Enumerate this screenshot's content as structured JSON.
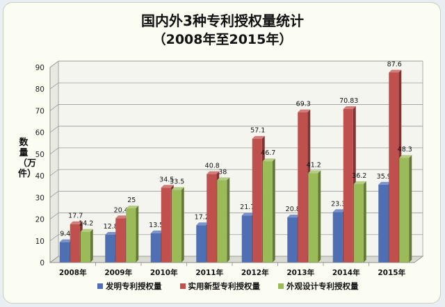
{
  "chart_data": {
    "type": "bar",
    "title": "国内外3种专利授权量统计",
    "subtitle": "（2008年至2015年）",
    "ylabel": "数量（万件）",
    "xlabel": "",
    "ylim": [
      0,
      90
    ],
    "yticks": [
      0,
      10,
      20,
      30,
      40,
      50,
      60,
      70,
      80,
      90
    ],
    "grid": true,
    "legend_position": "bottom",
    "categories": [
      "2008年",
      "2009年",
      "2010年",
      "2011年",
      "2012年",
      "2013年",
      "2014年",
      "2015年"
    ],
    "series": [
      {
        "name": "发明专利授权量",
        "color": "#4f6fb5",
        "values": [
          9.4,
          12.8,
          13.5,
          17.2,
          21.7,
          20.8,
          23.3,
          35.9
        ],
        "labels": [
          "9.4",
          "12.8",
          "13.5",
          "17.2",
          "21.7",
          "20.8",
          "23.3",
          "35.9"
        ]
      },
      {
        "name": "实用新型专利授权量",
        "color": "#c0504d",
        "values": [
          17.7,
          20.4,
          34.5,
          40.8,
          57.1,
          69.3,
          70.83,
          87.6
        ],
        "labels": [
          "17.7",
          "20.4",
          "34.5",
          "40.8",
          "57.1",
          "69.3",
          "70.83",
          "87.6"
        ]
      },
      {
        "name": "外观设计专利授权量",
        "color": "#9bbb59",
        "values": [
          14.2,
          25,
          33.5,
          38,
          46.7,
          41.2,
          36.2,
          48.3
        ],
        "labels": [
          "14.2",
          "25",
          "33.5",
          "38",
          "46.7",
          "41.2",
          "36.2",
          "48.3"
        ]
      }
    ]
  }
}
